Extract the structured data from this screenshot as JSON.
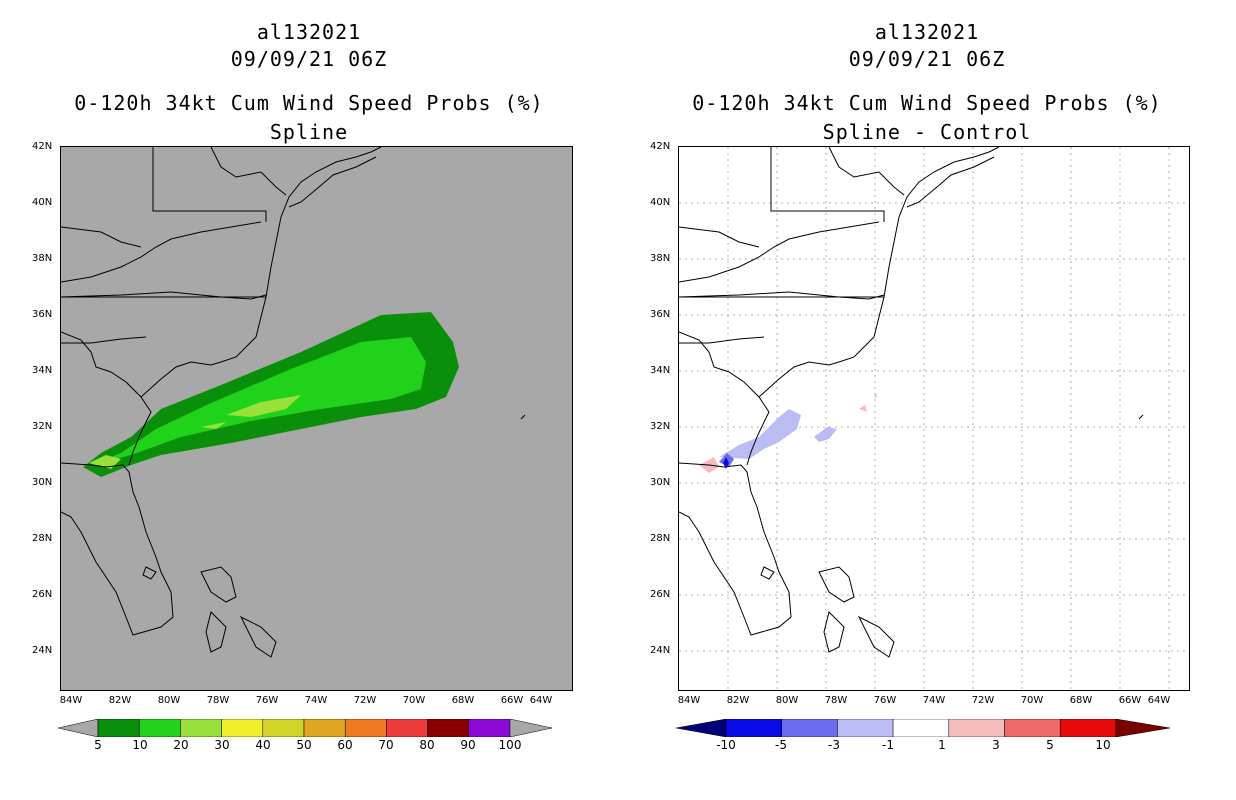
{
  "left": {
    "storm_id": "al132021",
    "datetime": "09/09/21 06Z",
    "title": "0-120h 34kt Cum Wind Speed Probs (%)",
    "subtitle": "Spline",
    "lat_labels": [
      "42N",
      "40N",
      "38N",
      "36N",
      "34N",
      "32N",
      "30N",
      "28N",
      "26N",
      "24N"
    ],
    "lon_labels": [
      "84W",
      "82W",
      "80W",
      "78W",
      "76W",
      "74W",
      "72W",
      "70W",
      "68W",
      "66W",
      "64W"
    ],
    "colorbar": {
      "labels": [
        "5",
        "10",
        "20",
        "30",
        "40",
        "50",
        "60",
        "70",
        "80",
        "90",
        "100"
      ],
      "colors": [
        "#0a8f0a",
        "#21d21a",
        "#99e03a",
        "#f0f028",
        "#d4d428",
        "#e0a820",
        "#ee7a24",
        "#ee3c3c",
        "#8a0000",
        "#8c0ad8"
      ]
    }
  },
  "right": {
    "storm_id": "al132021",
    "datetime": "09/09/21 06Z",
    "title": "0-120h 34kt Cum Wind Speed Probs (%)",
    "subtitle": "Spline - Control",
    "lat_labels": [
      "42N",
      "40N",
      "38N",
      "36N",
      "34N",
      "32N",
      "30N",
      "28N",
      "26N",
      "24N"
    ],
    "lon_labels": [
      "84W",
      "82W",
      "80W",
      "78W",
      "76W",
      "74W",
      "72W",
      "70W",
      "68W",
      "66W",
      "64W"
    ],
    "colorbar": {
      "labels": [
        "-10",
        "-5",
        "-3",
        "-1",
        "1",
        "3",
        "5",
        "10"
      ],
      "colors": [
        "#0a0ae6",
        "#6b6bee",
        "#bcbcf4",
        "#ffffff",
        "#f4bcbc",
        "#ee6b6b",
        "#e60a0a"
      ],
      "left_cap": "#00007a",
      "right_cap": "#7a0000"
    }
  }
}
